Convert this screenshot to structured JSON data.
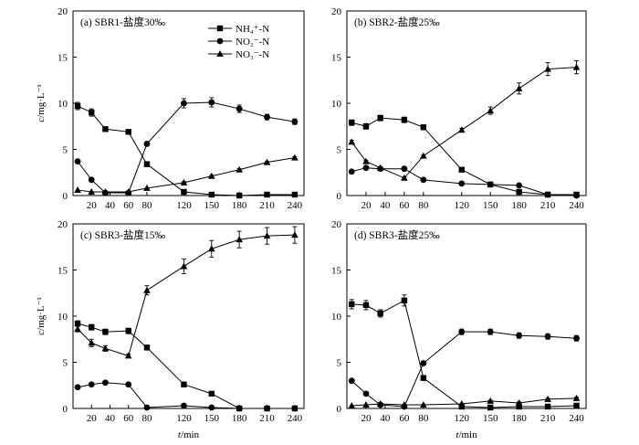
{
  "chart_data": [
    {
      "type": "line",
      "title": "(a) SBR1-盐度30‰",
      "ylabel_main": "c",
      "ylabel_unit": "/mg·L⁻¹",
      "xlabel_main": "",
      "xlabel_unit": "",
      "x": [
        5,
        20,
        35,
        60,
        80,
        120,
        150,
        180,
        210,
        240
      ],
      "xticks": [
        20,
        40,
        60,
        80,
        120,
        150,
        180,
        210,
        240
      ],
      "xlim": [
        0,
        250
      ],
      "ylim": [
        0,
        20
      ],
      "yticks": [
        0,
        5,
        10,
        15,
        20
      ],
      "legend_position": "top-center",
      "series": [
        {
          "name": "NH₄⁺-N",
          "marker": "square",
          "values": [
            9.7,
            9.0,
            7.2,
            6.9,
            3.4,
            0.4,
            0.1,
            0.0,
            0.1,
            0.1
          ],
          "errors": [
            0.4,
            0.4,
            0.2,
            0.2,
            0.1,
            0.1,
            0.0,
            0.0,
            0.0,
            0.0
          ]
        },
        {
          "name": "NO₂⁻-N",
          "marker": "circle",
          "values": [
            3.7,
            1.7,
            0.3,
            0.3,
            5.6,
            10.0,
            10.1,
            9.4,
            8.5,
            8.0
          ],
          "errors": [
            0.1,
            0.1,
            0.0,
            0.0,
            0.2,
            0.5,
            0.5,
            0.4,
            0.3,
            0.3
          ]
        },
        {
          "name": "NO₃⁻-N",
          "marker": "triangle",
          "values": [
            0.6,
            0.4,
            0.4,
            0.4,
            0.8,
            1.4,
            2.1,
            2.8,
            3.6,
            4.1
          ],
          "errors": [
            0.0,
            0.0,
            0.0,
            0.0,
            0.0,
            0.1,
            0.1,
            0.1,
            0.1,
            0.1
          ]
        }
      ]
    },
    {
      "type": "line",
      "title": "(b) SBR2-盐度25‰",
      "ylabel_main": "",
      "ylabel_unit": "",
      "xlabel_main": "",
      "xlabel_unit": "",
      "x": [
        5,
        20,
        35,
        60,
        80,
        120,
        150,
        180,
        210,
        240
      ],
      "xticks": [
        20,
        40,
        60,
        80,
        120,
        150,
        180,
        210,
        240
      ],
      "xlim": [
        0,
        250
      ],
      "ylim": [
        0,
        20
      ],
      "yticks": [
        0,
        5,
        10,
        15,
        20
      ],
      "legend_position": "",
      "series": [
        {
          "name": "",
          "marker": "square",
          "values": [
            7.9,
            7.5,
            8.4,
            8.2,
            7.4,
            2.8,
            1.2,
            0.4,
            0.1,
            0.1
          ],
          "errors": [
            0.3,
            0.3,
            0.3,
            0.3,
            0.2,
            0.1,
            0.1,
            0.0,
            0.0,
            0.0
          ]
        },
        {
          "name": "",
          "marker": "circle",
          "values": [
            2.6,
            3.0,
            2.9,
            2.9,
            1.7,
            1.3,
            1.2,
            1.1,
            0.1,
            0.0
          ],
          "errors": [
            0.1,
            0.1,
            0.1,
            0.1,
            0.1,
            0.1,
            0.1,
            0.1,
            0.0,
            0.0
          ]
        },
        {
          "name": "",
          "marker": "triangle",
          "values": [
            5.8,
            3.7,
            3.0,
            1.9,
            4.3,
            7.1,
            9.2,
            11.6,
            13.7,
            13.9
          ],
          "errors": [
            0.2,
            0.1,
            0.1,
            0.1,
            0.1,
            0.2,
            0.4,
            0.6,
            0.7,
            0.7
          ]
        }
      ]
    },
    {
      "type": "line",
      "title": "(c) SBR3-盐度15‰",
      "ylabel_main": "c",
      "ylabel_unit": "/mg·L⁻¹",
      "xlabel_main": "t",
      "xlabel_unit": "/min",
      "x": [
        5,
        20,
        35,
        60,
        80,
        120,
        150,
        180,
        210,
        240
      ],
      "xticks": [
        20,
        40,
        60,
        80,
        120,
        150,
        180,
        210,
        240
      ],
      "xlim": [
        0,
        250
      ],
      "ylim": [
        0,
        20
      ],
      "yticks": [
        0,
        5,
        10,
        15,
        20
      ],
      "legend_position": "",
      "series": [
        {
          "name": "",
          "marker": "square",
          "values": [
            9.2,
            8.8,
            8.3,
            8.4,
            6.6,
            2.6,
            1.6,
            0.0,
            0.0,
            0.0
          ],
          "errors": [
            0.3,
            0.3,
            0.3,
            0.3,
            0.2,
            0.1,
            0.1,
            0.0,
            0.0,
            0.0
          ]
        },
        {
          "name": "",
          "marker": "circle",
          "values": [
            2.3,
            2.6,
            2.8,
            2.6,
            0.1,
            0.3,
            0.1,
            0.0,
            0.0,
            0.0
          ],
          "errors": [
            0.1,
            0.1,
            0.1,
            0.1,
            0.0,
            0.0,
            0.0,
            0.0,
            0.0,
            0.0
          ]
        },
        {
          "name": "",
          "marker": "triangle",
          "values": [
            8.6,
            7.1,
            6.5,
            5.7,
            12.8,
            15.4,
            17.3,
            18.3,
            18.7,
            18.8
          ],
          "errors": [
            0.3,
            0.4,
            0.3,
            0.2,
            0.5,
            0.8,
            0.9,
            0.9,
            0.9,
            0.9
          ]
        }
      ]
    },
    {
      "type": "line",
      "title": "(d) SBR3-盐度25‰",
      "ylabel_main": "",
      "ylabel_unit": "",
      "xlabel_main": "t",
      "xlabel_unit": "/min",
      "x": [
        5,
        20,
        35,
        60,
        80,
        120,
        150,
        180,
        210,
        240
      ],
      "xticks": [
        20,
        40,
        60,
        80,
        120,
        150,
        180,
        210,
        240
      ],
      "xlim": [
        0,
        250
      ],
      "ylim": [
        0,
        20
      ],
      "yticks": [
        0,
        5,
        10,
        15,
        20
      ],
      "legend_position": "",
      "series": [
        {
          "name": "",
          "marker": "square",
          "values": [
            11.3,
            11.2,
            10.3,
            11.7,
            3.3,
            0.2,
            0.1,
            0.2,
            0.2,
            0.3
          ],
          "errors": [
            0.5,
            0.5,
            0.4,
            0.6,
            0.2,
            0.0,
            0.0,
            0.0,
            0.0,
            0.0
          ]
        },
        {
          "name": "",
          "marker": "circle",
          "values": [
            3.0,
            1.6,
            0.4,
            0.2,
            4.9,
            8.3,
            8.3,
            7.9,
            7.8,
            7.6
          ],
          "errors": [
            0.1,
            0.1,
            0.0,
            0.0,
            0.2,
            0.3,
            0.3,
            0.3,
            0.3,
            0.3
          ]
        },
        {
          "name": "",
          "marker": "triangle",
          "values": [
            0.3,
            0.4,
            0.5,
            0.4,
            0.4,
            0.5,
            0.8,
            0.6,
            1.0,
            1.1
          ],
          "errors": [
            0.0,
            0.0,
            0.0,
            0.0,
            0.0,
            0.0,
            0.1,
            0.1,
            0.1,
            0.1
          ]
        }
      ]
    }
  ]
}
